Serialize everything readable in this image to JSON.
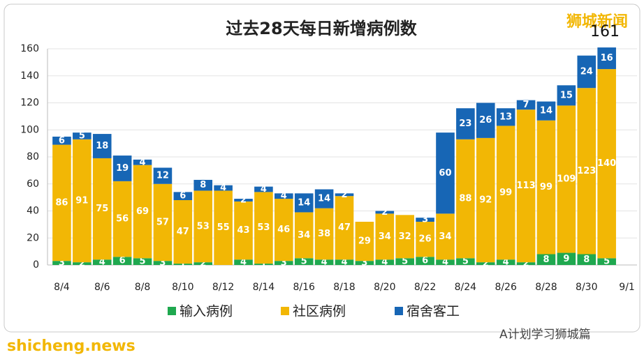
{
  "chart_data": {
    "type": "stacked_bar",
    "title": "过去28天每日新增病例数",
    "annotation": "161",
    "watermarks": [
      "狮城新闻",
      "shicheng.news",
      "A计划学习狮城篇"
    ],
    "categories": [
      "8/4",
      null,
      "8/6",
      null,
      "8/8",
      null,
      "8/10",
      null,
      "8/12",
      null,
      "8/14",
      null,
      "8/16",
      null,
      "8/18",
      null,
      "8/20",
      null,
      "8/22",
      null,
      "8/24",
      null,
      "8/26",
      null,
      "8/28",
      null,
      "8/30",
      null,
      "9/1"
    ],
    "series": [
      {
        "name": "输入病例",
        "color": "#1fa84f",
        "values": [
          3,
          2,
          4,
          6,
          5,
          3,
          1,
          2,
          null,
          4,
          1,
          3,
          5,
          4,
          4,
          3,
          4,
          5,
          6,
          4,
          5,
          2,
          4,
          2,
          8,
          9,
          8,
          5,
          null
        ]
      },
      {
        "name": "社区病例",
        "color": "#f2b705",
        "values": [
          86,
          91,
          75,
          56,
          69,
          57,
          47,
          53,
          55,
          43,
          53,
          46,
          34,
          38,
          47,
          29,
          34,
          32,
          26,
          34,
          88,
          92,
          99,
          113,
          99,
          109,
          123,
          140,
          null
        ]
      },
      {
        "name": "宿舍客工",
        "color": "#1766b5",
        "values": [
          6,
          5,
          18,
          19,
          4,
          12,
          6,
          8,
          4,
          2,
          4,
          4,
          14,
          14,
          2,
          null,
          2,
          null,
          3,
          60,
          23,
          26,
          13,
          7,
          14,
          15,
          24,
          16,
          null
        ]
      }
    ],
    "ylim": [
      0,
      160
    ],
    "yticks": [
      0,
      20,
      40,
      60,
      80,
      100,
      120,
      140,
      160
    ],
    "grid": true
  }
}
